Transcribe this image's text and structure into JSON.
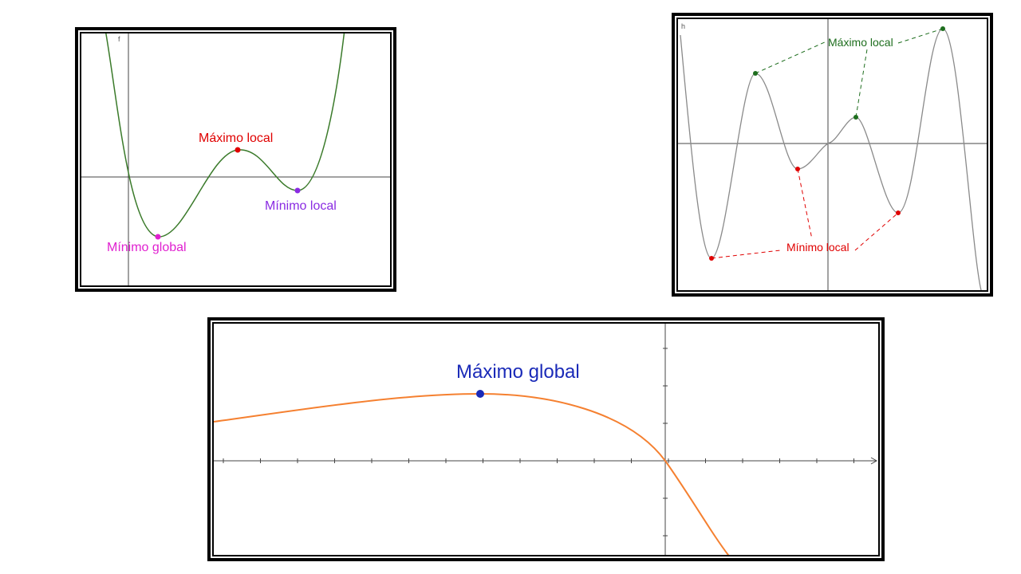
{
  "panels": [
    {
      "function_label": "f",
      "curve_color": "#3a7a2a",
      "labels": {
        "local_max": {
          "text": "Máximo local",
          "color": "#e00000"
        },
        "local_min": {
          "text": "Mínimo local",
          "color": "#8a2be2"
        },
        "global_min": {
          "text": "Mínimo global",
          "color": "#e020d0"
        }
      }
    },
    {
      "function_label": "h",
      "curve_color": "#8a8a8a",
      "labels": {
        "local_max": {
          "text": "Máximo local",
          "color": "#1e6e1e"
        },
        "local_min": {
          "text": "Mínimo local",
          "color": "#e00000"
        }
      }
    },
    {
      "curve_color": "#f58030",
      "labels": {
        "global_max": {
          "text": "Máximo global",
          "color": "#1a2ab8"
        }
      }
    }
  ]
}
